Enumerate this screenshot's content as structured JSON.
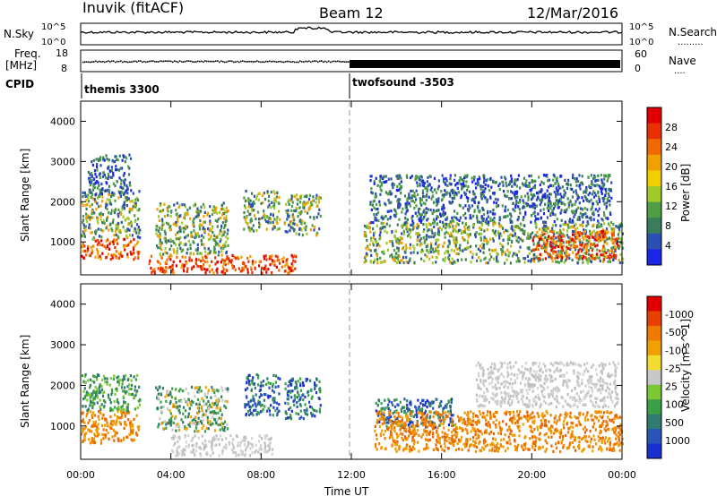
{
  "header": {
    "radar": "Inuvik (fitACF)",
    "beam": "Beam 12",
    "date": "12/Mar/2016"
  },
  "top_panels": {
    "nsky_label": "N.Sky",
    "nsky_ticks": [
      "10^5",
      "10^0"
    ],
    "nsearch_ticks": [
      "10^5",
      "10^0"
    ],
    "nsearch_label": "N.Search",
    "nsearch_dots": ".........",
    "freq_label_line1": "Freq.",
    "freq_label_line2": "[MHz]",
    "freq_ticks": [
      "18",
      "8"
    ],
    "nave_ticks": [
      "60",
      "0"
    ],
    "nave_label": "Nave",
    "nave_dots": "....",
    "cpid_label": "CPID",
    "cpid_segments": [
      {
        "name": "themis 3300",
        "start_hour": 0,
        "end_hour": 12
      },
      {
        "name": "twofsound -3503",
        "start_hour": 12,
        "end_hour": 24
      }
    ]
  },
  "chart_data": [
    {
      "type": "heatmap",
      "panel": "power",
      "x_hours": [
        0,
        24
      ],
      "ylabel": "Slant Range [km]",
      "ylim": [
        180,
        4500
      ],
      "yticks": [
        1000,
        2000,
        3000,
        4000
      ],
      "colorbar_label": "Power [dB]",
      "colorbar_ticks": [
        "4",
        "8",
        "12",
        "16",
        "20",
        "24",
        "28"
      ],
      "colorbar_colors": [
        "#1b26e6",
        "#2b4fb3",
        "#3b7d5a",
        "#4e9e45",
        "#9fca2a",
        "#f2d000",
        "#f0a000",
        "#f06a00",
        "#e83000",
        "#e00000"
      ],
      "echo_regions": [
        {
          "t0": 0.0,
          "t1": 2.6,
          "r0": 600,
          "r1": 1100,
          "level": "high"
        },
        {
          "t0": 0.0,
          "t1": 2.6,
          "r0": 1100,
          "r1": 2300,
          "level": "medium"
        },
        {
          "t0": 0.3,
          "t1": 2.2,
          "r0": 2200,
          "r1": 3200,
          "level": "low"
        },
        {
          "t0": 3.0,
          "t1": 9.5,
          "r0": 250,
          "r1": 700,
          "level": "high"
        },
        {
          "t0": 3.3,
          "t1": 6.5,
          "r0": 700,
          "r1": 2000,
          "level": "medium"
        },
        {
          "t0": 7.2,
          "t1": 8.8,
          "r0": 1300,
          "r1": 2300,
          "level": "medium"
        },
        {
          "t0": 9.0,
          "t1": 10.6,
          "r0": 1200,
          "r1": 2200,
          "level": "medium"
        },
        {
          "t0": 12.5,
          "t1": 24.0,
          "r0": 500,
          "r1": 1500,
          "level": "medium"
        },
        {
          "t0": 12.8,
          "t1": 23.5,
          "r0": 1500,
          "r1": 2700,
          "level": "low"
        },
        {
          "t0": 20.0,
          "t1": 23.8,
          "r0": 600,
          "r1": 1300,
          "level": "high"
        }
      ]
    },
    {
      "type": "heatmap",
      "panel": "velocity",
      "x_hours": [
        0,
        24
      ],
      "xticks": [
        "00:00",
        "04:00",
        "08:00",
        "12:00",
        "16:00",
        "20:00",
        "00:00"
      ],
      "xlabel": "Time UT",
      "ylabel": "Slant Range [km]",
      "ylim": [
        180,
        4500
      ],
      "yticks": [
        1000,
        2000,
        3000,
        4000
      ],
      "colorbar_label": "Velocity [m s^-1]",
      "colorbar_ticks": [
        "1000",
        "500",
        "100",
        "25",
        "-25",
        "-100",
        "-500",
        "-1000"
      ],
      "colorbar_colors": [
        "#1a2fd0",
        "#2a55b8",
        "#2f7b6f",
        "#3aa046",
        "#7cc832",
        "#c8c8c8",
        "#f2dc30",
        "#f0a000",
        "#ee7a00",
        "#e84000",
        "#e00000"
      ],
      "echo_regions": [
        {
          "t0": 0.0,
          "t1": 2.6,
          "r0": 600,
          "r1": 1400,
          "level": "orange"
        },
        {
          "t0": 0.0,
          "t1": 2.6,
          "r0": 1400,
          "r1": 2300,
          "level": "green"
        },
        {
          "t0": 4.0,
          "t1": 8.5,
          "r0": 300,
          "r1": 800,
          "level": "gray"
        },
        {
          "t0": 3.3,
          "t1": 6.5,
          "r0": 900,
          "r1": 2000,
          "level": "mixed"
        },
        {
          "t0": 7.2,
          "t1": 8.8,
          "r0": 1300,
          "r1": 2300,
          "level": "blue"
        },
        {
          "t0": 9.0,
          "t1": 10.6,
          "r0": 1200,
          "r1": 2200,
          "level": "blue"
        },
        {
          "t0": 13.0,
          "t1": 16.5,
          "r0": 1000,
          "r1": 1700,
          "level": "blue"
        },
        {
          "t0": 13.0,
          "t1": 24.0,
          "r0": 400,
          "r1": 1400,
          "level": "orange"
        },
        {
          "t0": 17.5,
          "t1": 23.8,
          "r0": 1500,
          "r1": 2600,
          "level": "gray"
        }
      ]
    }
  ]
}
